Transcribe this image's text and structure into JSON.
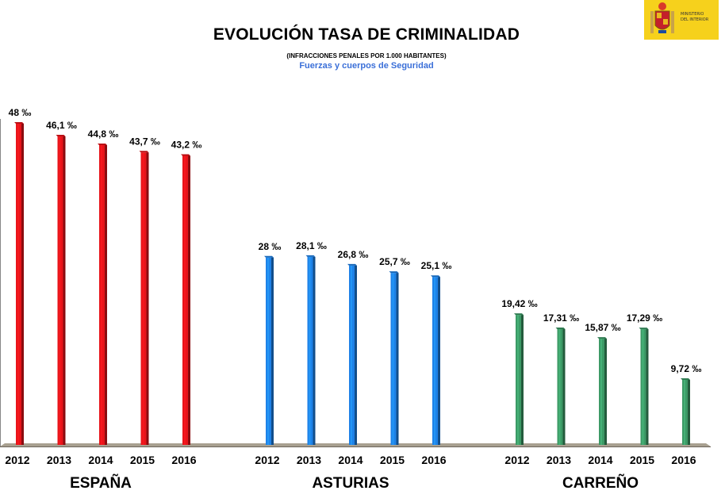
{
  "header": {
    "logo_text": "MINISTERIO\nDEL INTERIOR"
  },
  "chart_data": {
    "type": "bar",
    "title": "EVOLUCIÓN TASA DE CRIMINALIDAD",
    "subtitle": "(INFRACCIONES PENALES POR 1.000 HABITANTES)",
    "source": "Fuerzas y cuerpos de Seguridad",
    "xlabel": "",
    "ylabel": "",
    "ylim": [
      0,
      48
    ],
    "grid": false,
    "groups": [
      {
        "name": "ESPAÑA",
        "color": "#e8141a",
        "categories": [
          "2012",
          "2013",
          "2014",
          "2015",
          "2016"
        ],
        "values": [
          48,
          46.1,
          44.8,
          43.7,
          43.2
        ],
        "labels": [
          "48 ‰",
          "46,1 ‰",
          "44,8 ‰",
          "43,7 ‰",
          "43,2 ‰"
        ]
      },
      {
        "name": "ASTURIAS",
        "color": "#1e82e8",
        "categories": [
          "2012",
          "2013",
          "2014",
          "2015",
          "2016"
        ],
        "values": [
          28,
          28.1,
          26.8,
          25.7,
          25.1
        ],
        "labels": [
          "28 ‰",
          "28,1 ‰",
          "26,8 ‰",
          "25,7 ‰",
          "25,1 ‰"
        ]
      },
      {
        "name": "CARREÑO",
        "color": "#3c9a66",
        "categories": [
          "2012",
          "2013",
          "2014",
          "2015",
          "2016"
        ],
        "values": [
          19.42,
          17.31,
          15.87,
          17.29,
          9.72
        ],
        "labels": [
          "19,42 ‰",
          "17,31 ‰",
          "15,87 ‰",
          "17,29 ‰",
          "9,72 ‰"
        ]
      }
    ]
  }
}
